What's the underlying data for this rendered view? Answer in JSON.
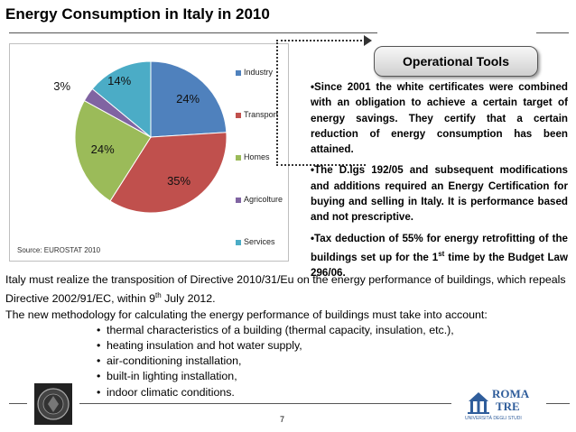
{
  "title": "Energy Consumption in Italy in 2010",
  "colors": {
    "industry": "#4f81bd",
    "transport": "#c0504d",
    "homes": "#9bbb59",
    "agriculture": "#8064a2",
    "services": "#4bacc6"
  },
  "chart_data": {
    "type": "pie",
    "slices": [
      {
        "label": "Industry",
        "value": 24,
        "text": "24%"
      },
      {
        "label": "Transport",
        "value": 35,
        "text": "35%"
      },
      {
        "label": "Homes",
        "value": 24,
        "text": "24%"
      },
      {
        "label": "Agricolture",
        "value": 3,
        "text": "3%"
      },
      {
        "label": "Services",
        "value": 14,
        "text": "14%"
      }
    ],
    "legend_position": "right",
    "source": "Source: EUROSTAT 2010"
  },
  "operational_tools": {
    "heading": "Operational Tools",
    "bullets": [
      "•Since 2001 the white certificates were combined with an obligation to achieve a certain target of energy savings. They certify that a certain reduction of energy consumption has been attained.",
      "•The D.lgs 192/05 and subsequent modifications and additions required an Energy Certification for buying and selling in Italy. It is performance based and not prescriptive."
    ],
    "bullet3_before": "•Tax deduction of 55% for energy retrofitting of the buildings set up for the 1",
    "bullet3_sup": "st",
    "bullet3_after": " time by the Budget Law 296/06."
  },
  "body": {
    "para1_before": "Italy must realize the transposition of Directive 2010/31/Eu on the energy performance of buildings, which repeals Directive 2002/91/EC, within 9",
    "para1_sup": "th",
    "para1_after": " July 2012.",
    "para2": "The new methodology for calculating the energy performance of buildings must take into account:",
    "items": [
      "thermal characteristics of a building (thermal capacity, insulation, etc.),",
      "heating insulation and hot water supply,",
      "air-conditioning installation,",
      "built-in lighting installation,",
      "indoor climatic conditions."
    ],
    "bullet_glyph": "•"
  },
  "footer": {
    "page_number": "7",
    "logo_roma": "ROMA",
    "logo_tre": "TRE",
    "logo_sub": "UNIVERSITÀ DEGLI STUDI"
  }
}
